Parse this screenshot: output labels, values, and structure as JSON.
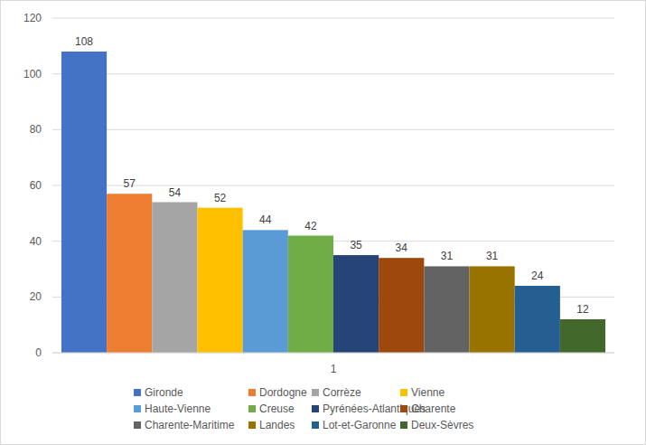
{
  "chart_data": {
    "type": "bar",
    "categories": [
      "1"
    ],
    "series": [
      {
        "name": "Gironde",
        "color": "#4472c4",
        "values": [
          108
        ]
      },
      {
        "name": "Dordogne",
        "color": "#ed7d31",
        "values": [
          57
        ]
      },
      {
        "name": "Corrèze",
        "color": "#a5a5a5",
        "values": [
          54
        ]
      },
      {
        "name": "Vienne",
        "color": "#ffc000",
        "values": [
          52
        ]
      },
      {
        "name": "Haute-Vienne",
        "color": "#5b9bd5",
        "values": [
          44
        ]
      },
      {
        "name": "Creuse",
        "color": "#70ad47",
        "values": [
          42
        ]
      },
      {
        "name": "Pyrénées-Atlantiques",
        "color": "#264478",
        "values": [
          35
        ]
      },
      {
        "name": "Charente",
        "color": "#9e480e",
        "values": [
          34
        ]
      },
      {
        "name": "Charente-Maritime",
        "color": "#636363",
        "values": [
          31
        ]
      },
      {
        "name": "Landes",
        "color": "#997300",
        "values": [
          31
        ]
      },
      {
        "name": "Lot-et-Garonne",
        "color": "#255e91",
        "values": [
          24
        ]
      },
      {
        "name": "Deux-Sèvres",
        "color": "#43682b",
        "values": [
          12
        ]
      }
    ],
    "ylim": [
      0,
      120
    ],
    "yticks": [
      0,
      20,
      40,
      60,
      80,
      100,
      120
    ],
    "grid": true,
    "data_labels": true,
    "legend": "bottom"
  }
}
